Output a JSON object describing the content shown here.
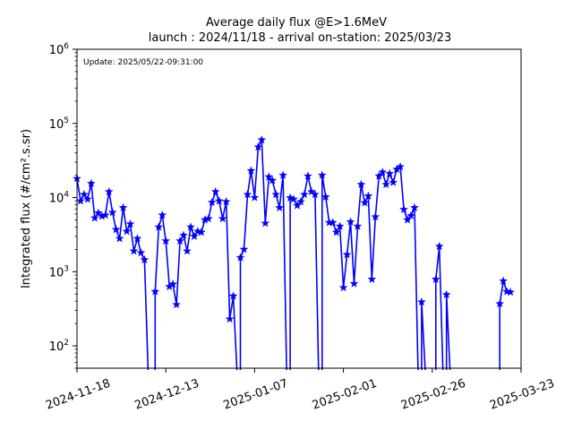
{
  "chart_data": {
    "type": "line",
    "title": "Average daily flux @E>1.6MeV",
    "subtitle": "launch : 2024/11/18 - arrival on-station: 2025/03/23",
    "annotation": "Update: 2025/05/22-09:31:00",
    "ylabel": "Integrated flux (#/cm².s.sr)",
    "xlabel": "",
    "x_axis_type": "date",
    "xlim": [
      "2024-11-18",
      "2025-03-23"
    ],
    "x_ticks": [
      "2024-11-18",
      "2024-12-13",
      "2025-01-07",
      "2025-02-01",
      "2025-02-26",
      "2025-03-23"
    ],
    "y_scale": "log",
    "ylim": [
      50,
      1000000
    ],
    "y_ticks": [
      {
        "value": 100,
        "base": "10",
        "exp": "2"
      },
      {
        "value": 1000,
        "base": "10",
        "exp": "3"
      },
      {
        "value": 10000,
        "base": "10",
        "exp": "4"
      },
      {
        "value": 100000,
        "base": "10",
        "exp": "5"
      },
      {
        "value": 1000000,
        "base": "10",
        "exp": "6"
      }
    ],
    "grid": false,
    "legend": "none",
    "colors": {
      "series": "#0000ff",
      "axes": "#000000",
      "background": "#ffffff"
    },
    "series": [
      {
        "marker": "star",
        "points": [
          [
            "2024-11-18",
            18000
          ],
          [
            "2024-11-19",
            9000
          ],
          [
            "2024-11-20",
            11000
          ],
          [
            "2024-11-21",
            9500
          ],
          [
            "2024-11-22",
            15500
          ],
          [
            "2024-11-23",
            5300
          ],
          [
            "2024-11-24",
            6200
          ],
          [
            "2024-11-25",
            5600
          ],
          [
            "2024-11-26",
            5800
          ],
          [
            "2024-11-27",
            12000
          ],
          [
            "2024-11-28",
            6300
          ],
          [
            "2024-11-29",
            3700
          ],
          [
            "2024-11-30",
            2800
          ],
          [
            "2024-12-01",
            7300
          ],
          [
            "2024-12-02",
            3500
          ],
          [
            "2024-12-03",
            4400
          ],
          [
            "2024-12-04",
            1900
          ],
          [
            "2024-12-05",
            2800
          ],
          [
            "2024-12-06",
            1800
          ],
          [
            "2024-12-07",
            1450
          ],
          [
            "2024-12-08",
            null
          ],
          [
            "2024-12-09",
            null
          ],
          [
            "2024-12-10",
            540
          ],
          [
            "2024-12-11",
            4000
          ],
          [
            "2024-12-12",
            5800
          ],
          [
            "2024-12-13",
            2600
          ],
          [
            "2024-12-14",
            630
          ],
          [
            "2024-12-15",
            680
          ],
          [
            "2024-12-16",
            360
          ],
          [
            "2024-12-17",
            2600
          ],
          [
            "2024-12-18",
            3100
          ],
          [
            "2024-12-19",
            1900
          ],
          [
            "2024-12-20",
            4000
          ],
          [
            "2024-12-21",
            3000
          ],
          [
            "2024-12-22",
            3500
          ],
          [
            "2024-12-23",
            3400
          ],
          [
            "2024-12-24",
            5000
          ],
          [
            "2024-12-25",
            5200
          ],
          [
            "2024-12-26",
            8600
          ],
          [
            "2024-12-27",
            12000
          ],
          [
            "2024-12-28",
            9000
          ],
          [
            "2024-12-29",
            5200
          ],
          [
            "2024-12-30",
            8800
          ],
          [
            "2024-12-31",
            230
          ],
          [
            "2025-01-01",
            470
          ],
          [
            "2025-01-02",
            null
          ],
          [
            "2025-01-03",
            1550
          ],
          [
            "2025-01-04",
            2000
          ],
          [
            "2025-01-05",
            11000
          ],
          [
            "2025-01-06",
            23000
          ],
          [
            "2025-01-07",
            10000
          ],
          [
            "2025-01-08",
            48000
          ],
          [
            "2025-01-09",
            60000
          ],
          [
            "2025-01-10",
            4500
          ],
          [
            "2025-01-11",
            19000
          ],
          [
            "2025-01-12",
            17000
          ],
          [
            "2025-01-13",
            11000
          ],
          [
            "2025-01-14",
            7300
          ],
          [
            "2025-01-15",
            20000
          ],
          [
            "2025-01-16",
            null
          ],
          [
            "2025-01-17",
            9900
          ],
          [
            "2025-01-18",
            9500
          ],
          [
            "2025-01-19",
            7800
          ],
          [
            "2025-01-20",
            8800
          ],
          [
            "2025-01-21",
            11000
          ],
          [
            "2025-01-22",
            19500
          ],
          [
            "2025-01-23",
            12000
          ],
          [
            "2025-01-24",
            11000
          ],
          [
            "2025-01-25",
            null
          ],
          [
            "2025-01-26",
            20000
          ],
          [
            "2025-01-27",
            10200
          ],
          [
            "2025-01-28",
            4600
          ],
          [
            "2025-01-29",
            4600
          ],
          [
            "2025-01-30",
            3400
          ],
          [
            "2025-01-31",
            4100
          ],
          [
            "2025-02-01",
            610
          ],
          [
            "2025-02-02",
            1700
          ],
          [
            "2025-02-03",
            4700
          ],
          [
            "2025-02-04",
            690
          ],
          [
            "2025-02-05",
            4100
          ],
          [
            "2025-02-06",
            15000
          ],
          [
            "2025-02-07",
            8500
          ],
          [
            "2025-02-08",
            10500
          ],
          [
            "2025-02-09",
            790
          ],
          [
            "2025-02-10",
            5500
          ],
          [
            "2025-02-11",
            19500
          ],
          [
            "2025-02-12",
            22000
          ],
          [
            "2025-02-13",
            15000
          ],
          [
            "2025-02-14",
            21000
          ],
          [
            "2025-02-15",
            16000
          ],
          [
            "2025-02-16",
            24000
          ],
          [
            "2025-02-17",
            26000
          ],
          [
            "2025-02-18",
            6900
          ],
          [
            "2025-02-19",
            5000
          ],
          [
            "2025-02-20",
            5700
          ],
          [
            "2025-02-21",
            7300
          ],
          [
            "2025-02-22",
            null
          ],
          [
            "2025-02-23",
            390
          ],
          [
            "2025-02-24",
            null
          ],
          [
            "2025-02-25",
            null
          ],
          [
            "2025-02-26",
            null
          ],
          [
            "2025-02-27",
            790
          ],
          [
            "2025-02-28",
            2200
          ],
          [
            "2025-03-01",
            null
          ],
          [
            "2025-03-02",
            490
          ],
          [
            "2025-03-03",
            null
          ],
          [
            "2025-03-04",
            null
          ],
          [
            "2025-03-05",
            null
          ],
          [
            "2025-03-06",
            null
          ],
          [
            "2025-03-07",
            null
          ],
          [
            "2025-03-08",
            null
          ],
          [
            "2025-03-09",
            null
          ],
          [
            "2025-03-10",
            null
          ],
          [
            "2025-03-11",
            null
          ],
          [
            "2025-03-12",
            null
          ],
          [
            "2025-03-13",
            null
          ],
          [
            "2025-03-14",
            null
          ],
          [
            "2025-03-15",
            null
          ],
          [
            "2025-03-16",
            null
          ],
          [
            "2025-03-17",
            370
          ],
          [
            "2025-03-18",
            750
          ],
          [
            "2025-03-19",
            540
          ],
          [
            "2025-03-20",
            530
          ]
        ]
      }
    ]
  }
}
